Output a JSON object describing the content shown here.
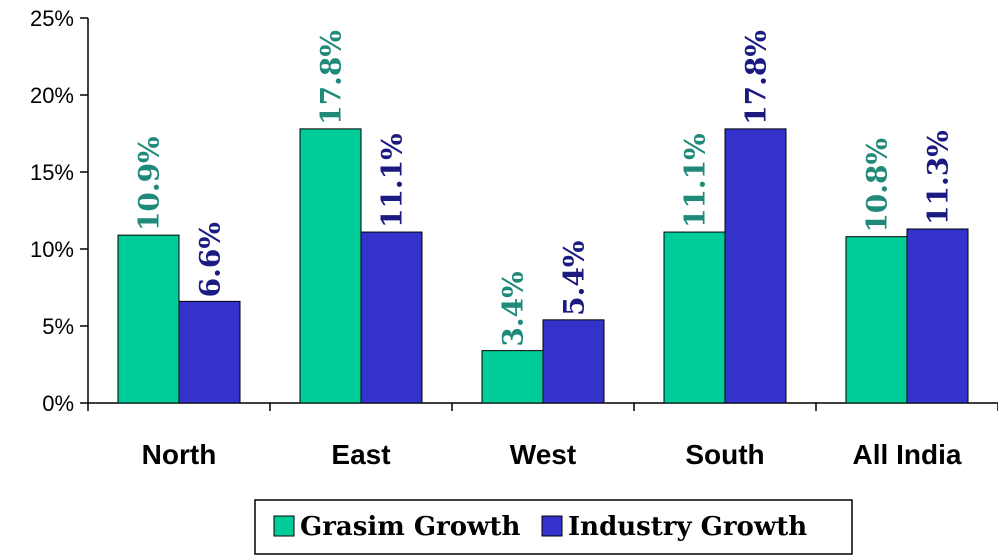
{
  "chart_data": {
    "type": "bar",
    "categories": [
      "North",
      "East",
      "West",
      "South",
      "All India"
    ],
    "series": [
      {
        "name": "Grasim Growth",
        "values": [
          10.9,
          17.8,
          3.4,
          11.1,
          10.8
        ],
        "labels": [
          "10.9%",
          "17.8%",
          "3.4%",
          "11.1%",
          "10.8%"
        ],
        "color": "#00cc99",
        "label_color": "#1f8a7a"
      },
      {
        "name": "Industry Growth",
        "values": [
          6.6,
          11.1,
          5.4,
          17.8,
          11.3
        ],
        "labels": [
          "6.6%",
          "11.1%",
          "5.4%",
          "17.8%",
          "11.3%"
        ],
        "color": "#3333cc",
        "label_color": "#1a1a80"
      }
    ],
    "yticks": [
      "0%",
      "5%",
      "10%",
      "15%",
      "20%",
      "25%"
    ],
    "ylim": [
      0,
      25
    ],
    "grid": false,
    "legend": "bottom"
  }
}
